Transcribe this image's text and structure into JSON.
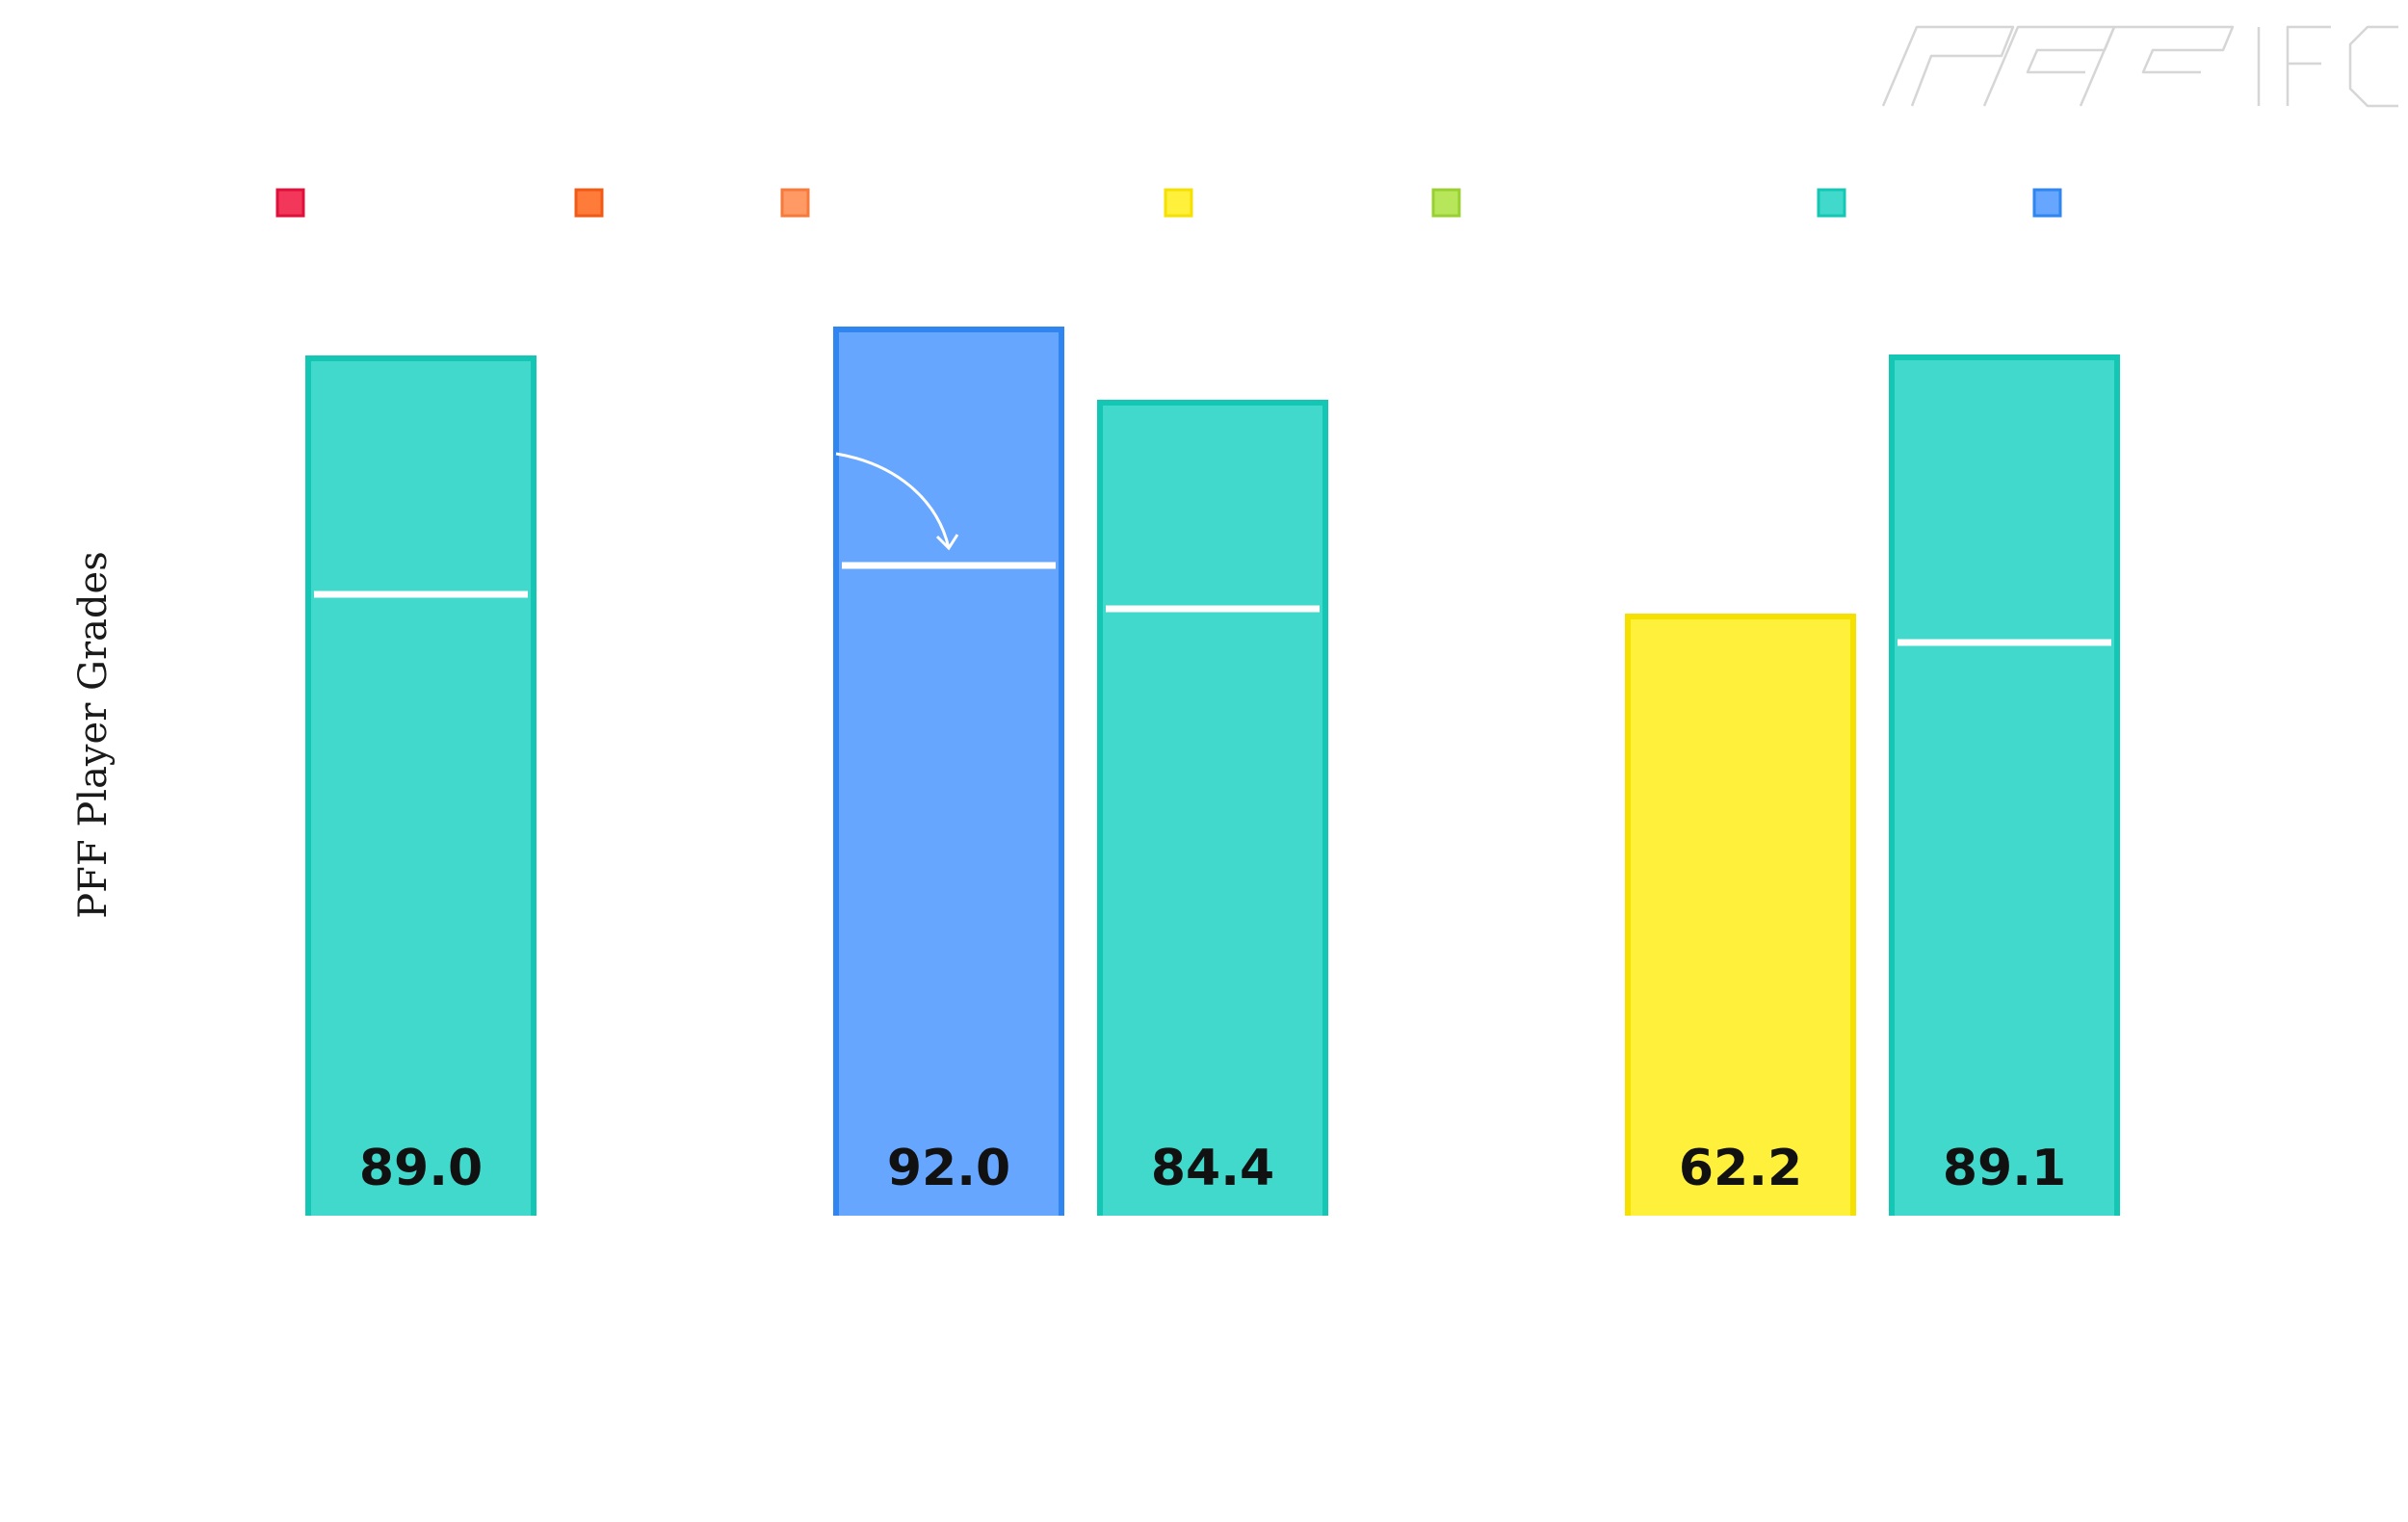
{
  "chart_data": {
    "type": "bar",
    "ylabel": "PFF Player Grades",
    "ylim": [
      0,
      100
    ],
    "grid": false,
    "legend": {
      "placement": "top",
      "swatches": [
        {
          "color": "#f2375a",
          "border": "#e0103c"
        },
        {
          "color": "#ff7b3a",
          "border": "#f05a14"
        },
        {
          "color": "#ff9a64",
          "border": "#f77a3c"
        },
        {
          "color": "#fff03c",
          "border": "#f5e000"
        },
        {
          "color": "#b8e65a",
          "border": "#98d030"
        },
        {
          "color": "#41d9cb",
          "border": "#14c7b4"
        },
        {
          "color": "#66a6ff",
          "border": "#2f86f0"
        }
      ]
    },
    "bars": [
      {
        "slot": 0,
        "value": 89.0,
        "label": "89.0",
        "marker": 64.5,
        "color": "#41d9cb",
        "border": "#14c7b4"
      },
      {
        "slot": 2,
        "value": 92.0,
        "label": "92.0",
        "marker": 67.5,
        "color": "#66a6ff",
        "border": "#2f86f0",
        "arrow": true
      },
      {
        "slot": 3,
        "value": 84.4,
        "label": "84.4",
        "marker": 63.0,
        "color": "#41d9cb",
        "border": "#14c7b4"
      },
      {
        "slot": 5,
        "value": 62.2,
        "label": "62.2",
        "marker": null,
        "color": "#fff03c",
        "border": "#f5e000"
      },
      {
        "slot": 6,
        "value": 89.1,
        "label": "89.1",
        "marker": 59.5,
        "color": "#41d9cb",
        "border": "#14c7b4"
      }
    ]
  },
  "logo": {
    "text": "PFF FC",
    "icon": "pff-fc-logo-icon",
    "color": "#d6d6d6"
  }
}
